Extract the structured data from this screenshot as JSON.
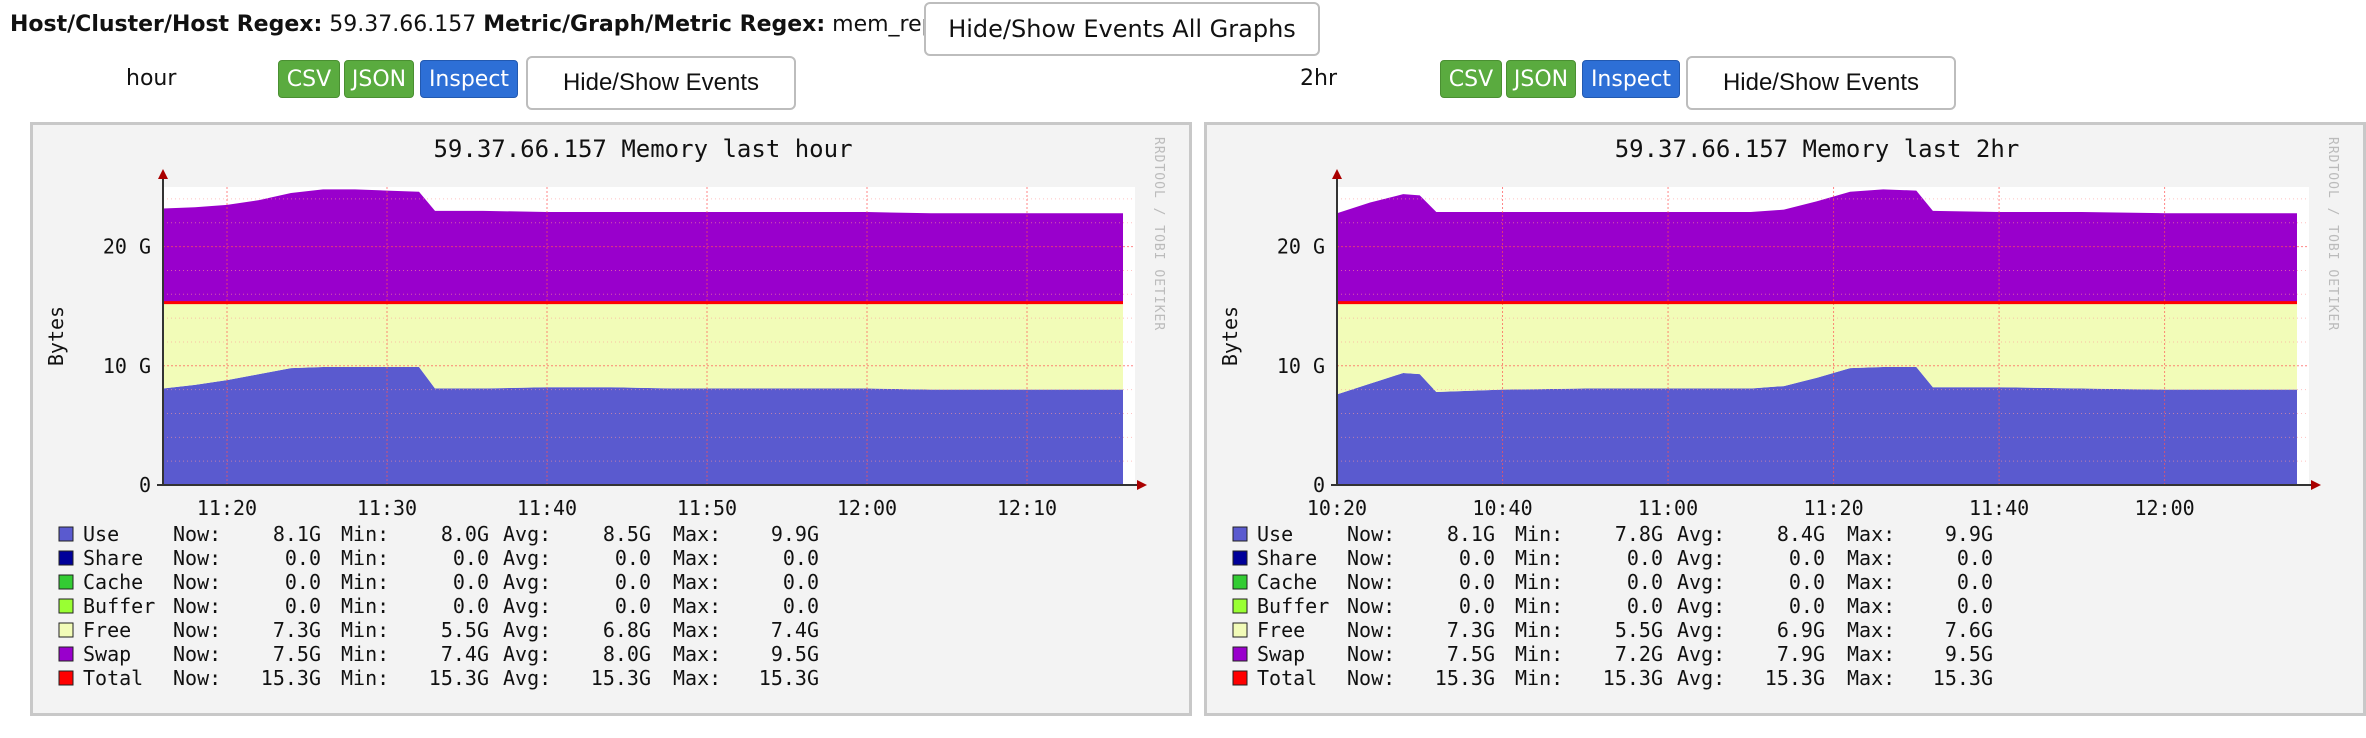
{
  "header": {
    "host_label": "Host/Cluster/Host Regex:",
    "host_value": "59.37.66.157",
    "metric_label": "Metric/Graph/Metric Regex:",
    "metric_value": "mem_report",
    "global_button": "Hide/Show Events All Graphs"
  },
  "graphs": [
    {
      "range_label": "hour",
      "csv": "CSV",
      "json": "JSON",
      "inspect": "Inspect",
      "events_button": "Hide/Show Events",
      "watermark": "RRDTOOL / TOBI OETIKER"
    },
    {
      "range_label": "2hr",
      "csv": "CSV",
      "json": "JSON",
      "inspect": "Inspect",
      "events_button": "Hide/Show Events",
      "watermark": "RRDTOOL / TOBI OETIKER"
    }
  ],
  "colors": {
    "use": "#5a5acf",
    "free": "#f2fcb8",
    "swap": "#9900cc",
    "total": "#ff0000",
    "share": "#000099",
    "cache": "#33cc33",
    "buffer": "#99ff33"
  },
  "chart_data": [
    {
      "type": "area",
      "title": "59.37.66.157 Memory last hour",
      "ylabel": "Bytes",
      "ylim": [
        0,
        25
      ],
      "y_unit": "G",
      "y_ticks": [
        "0",
        "10 G",
        "20 G"
      ],
      "x_ticks": [
        "11:20",
        "11:30",
        "11:40",
        "11:50",
        "12:00",
        "12:10"
      ],
      "x": [
        "11:16",
        "11:18",
        "11:20",
        "11:22",
        "11:24",
        "11:26",
        "11:28",
        "11:30",
        "11:32",
        "11:33",
        "11:36",
        "11:40",
        "11:44",
        "11:48",
        "11:52",
        "11:56",
        "12:00",
        "12:04",
        "12:08",
        "12:12",
        "12:16"
      ],
      "series": [
        {
          "name": "Use",
          "values": [
            8.1,
            8.4,
            8.8,
            9.3,
            9.8,
            9.9,
            9.9,
            9.9,
            9.9,
            8.1,
            8.1,
            8.2,
            8.2,
            8.1,
            8.1,
            8.1,
            8.1,
            8.0,
            8.0,
            8.0,
            8.0
          ]
        },
        {
          "name": "Free",
          "values": [
            7.2,
            6.9,
            6.5,
            6.0,
            5.5,
            5.4,
            5.4,
            5.4,
            5.4,
            7.2,
            7.2,
            7.1,
            7.1,
            7.2,
            7.2,
            7.2,
            7.2,
            7.3,
            7.3,
            7.3,
            7.3
          ]
        },
        {
          "name": "Swap",
          "values": [
            7.9,
            8.0,
            8.2,
            8.6,
            9.2,
            9.5,
            9.5,
            9.4,
            9.3,
            7.7,
            7.7,
            7.6,
            7.6,
            7.6,
            7.6,
            7.6,
            7.6,
            7.5,
            7.5,
            7.5,
            7.5
          ]
        },
        {
          "name": "Total",
          "values": [
            15.3,
            15.3,
            15.3,
            15.3,
            15.3,
            15.3,
            15.3,
            15.3,
            15.3,
            15.3,
            15.3,
            15.3,
            15.3,
            15.3,
            15.3,
            15.3,
            15.3,
            15.3,
            15.3,
            15.3,
            15.3
          ]
        }
      ],
      "legend": [
        {
          "name": "Use",
          "now": "8.1G",
          "min": "8.0G",
          "avg": "8.5G",
          "max": "9.9G"
        },
        {
          "name": "Share",
          "now": "0.0",
          "min": "0.0",
          "avg": "0.0",
          "max": "0.0"
        },
        {
          "name": "Cache",
          "now": "0.0",
          "min": "0.0",
          "avg": "0.0",
          "max": "0.0"
        },
        {
          "name": "Buffer",
          "now": "0.0",
          "min": "0.0",
          "avg": "0.0",
          "max": "0.0"
        },
        {
          "name": "Free",
          "now": "7.3G",
          "min": "5.5G",
          "avg": "6.8G",
          "max": "7.4G"
        },
        {
          "name": "Swap",
          "now": "7.5G",
          "min": "7.4G",
          "avg": "8.0G",
          "max": "9.5G"
        },
        {
          "name": "Total",
          "now": "15.3G",
          "min": "15.3G",
          "avg": "15.3G",
          "max": "15.3G"
        }
      ],
      "legend_placement": "bottom-left",
      "grid": true
    },
    {
      "type": "area",
      "title": "59.37.66.157 Memory last 2hr",
      "ylabel": "Bytes",
      "ylim": [
        0,
        25
      ],
      "y_unit": "G",
      "y_ticks": [
        "0",
        "10 G",
        "20 G"
      ],
      "x_ticks": [
        "10:20",
        "10:40",
        "11:00",
        "11:20",
        "11:40",
        "12:00"
      ],
      "x": [
        "10:20",
        "10:24",
        "10:28",
        "10:30",
        "10:32",
        "10:40",
        "10:50",
        "11:00",
        "11:10",
        "11:14",
        "11:18",
        "11:22",
        "11:26",
        "11:30",
        "11:32",
        "11:40",
        "11:50",
        "12:00",
        "12:10",
        "12:16"
      ],
      "series": [
        {
          "name": "Use",
          "values": [
            7.6,
            8.5,
            9.4,
            9.3,
            7.8,
            8.0,
            8.1,
            8.1,
            8.1,
            8.3,
            9.0,
            9.8,
            9.9,
            9.9,
            8.2,
            8.2,
            8.1,
            8.0,
            8.0,
            8.0
          ]
        },
        {
          "name": "Free",
          "values": [
            7.7,
            6.8,
            5.9,
            6.0,
            7.5,
            7.3,
            7.2,
            7.2,
            7.2,
            7.0,
            6.3,
            5.5,
            5.4,
            5.4,
            7.1,
            7.1,
            7.2,
            7.3,
            7.3,
            7.3
          ]
        },
        {
          "name": "Swap",
          "values": [
            7.5,
            8.4,
            9.1,
            9.0,
            7.6,
            7.6,
            7.6,
            7.6,
            7.6,
            7.8,
            8.5,
            9.3,
            9.5,
            9.4,
            7.7,
            7.6,
            7.6,
            7.5,
            7.5,
            7.5
          ]
        },
        {
          "name": "Total",
          "values": [
            15.3,
            15.3,
            15.3,
            15.3,
            15.3,
            15.3,
            15.3,
            15.3,
            15.3,
            15.3,
            15.3,
            15.3,
            15.3,
            15.3,
            15.3,
            15.3,
            15.3,
            15.3,
            15.3,
            15.3
          ]
        }
      ],
      "legend": [
        {
          "name": "Use",
          "now": "8.1G",
          "min": "7.8G",
          "avg": "8.4G",
          "max": "9.9G"
        },
        {
          "name": "Share",
          "now": "0.0",
          "min": "0.0",
          "avg": "0.0",
          "max": "0.0"
        },
        {
          "name": "Cache",
          "now": "0.0",
          "min": "0.0",
          "avg": "0.0",
          "max": "0.0"
        },
        {
          "name": "Buffer",
          "now": "0.0",
          "min": "0.0",
          "avg": "0.0",
          "max": "0.0"
        },
        {
          "name": "Free",
          "now": "7.3G",
          "min": "5.5G",
          "avg": "6.9G",
          "max": "7.6G"
        },
        {
          "name": "Swap",
          "now": "7.5G",
          "min": "7.2G",
          "avg": "7.9G",
          "max": "9.5G"
        },
        {
          "name": "Total",
          "now": "15.3G",
          "min": "15.3G",
          "avg": "15.3G",
          "max": "15.3G"
        }
      ],
      "legend_placement": "bottom-left",
      "grid": true
    }
  ]
}
